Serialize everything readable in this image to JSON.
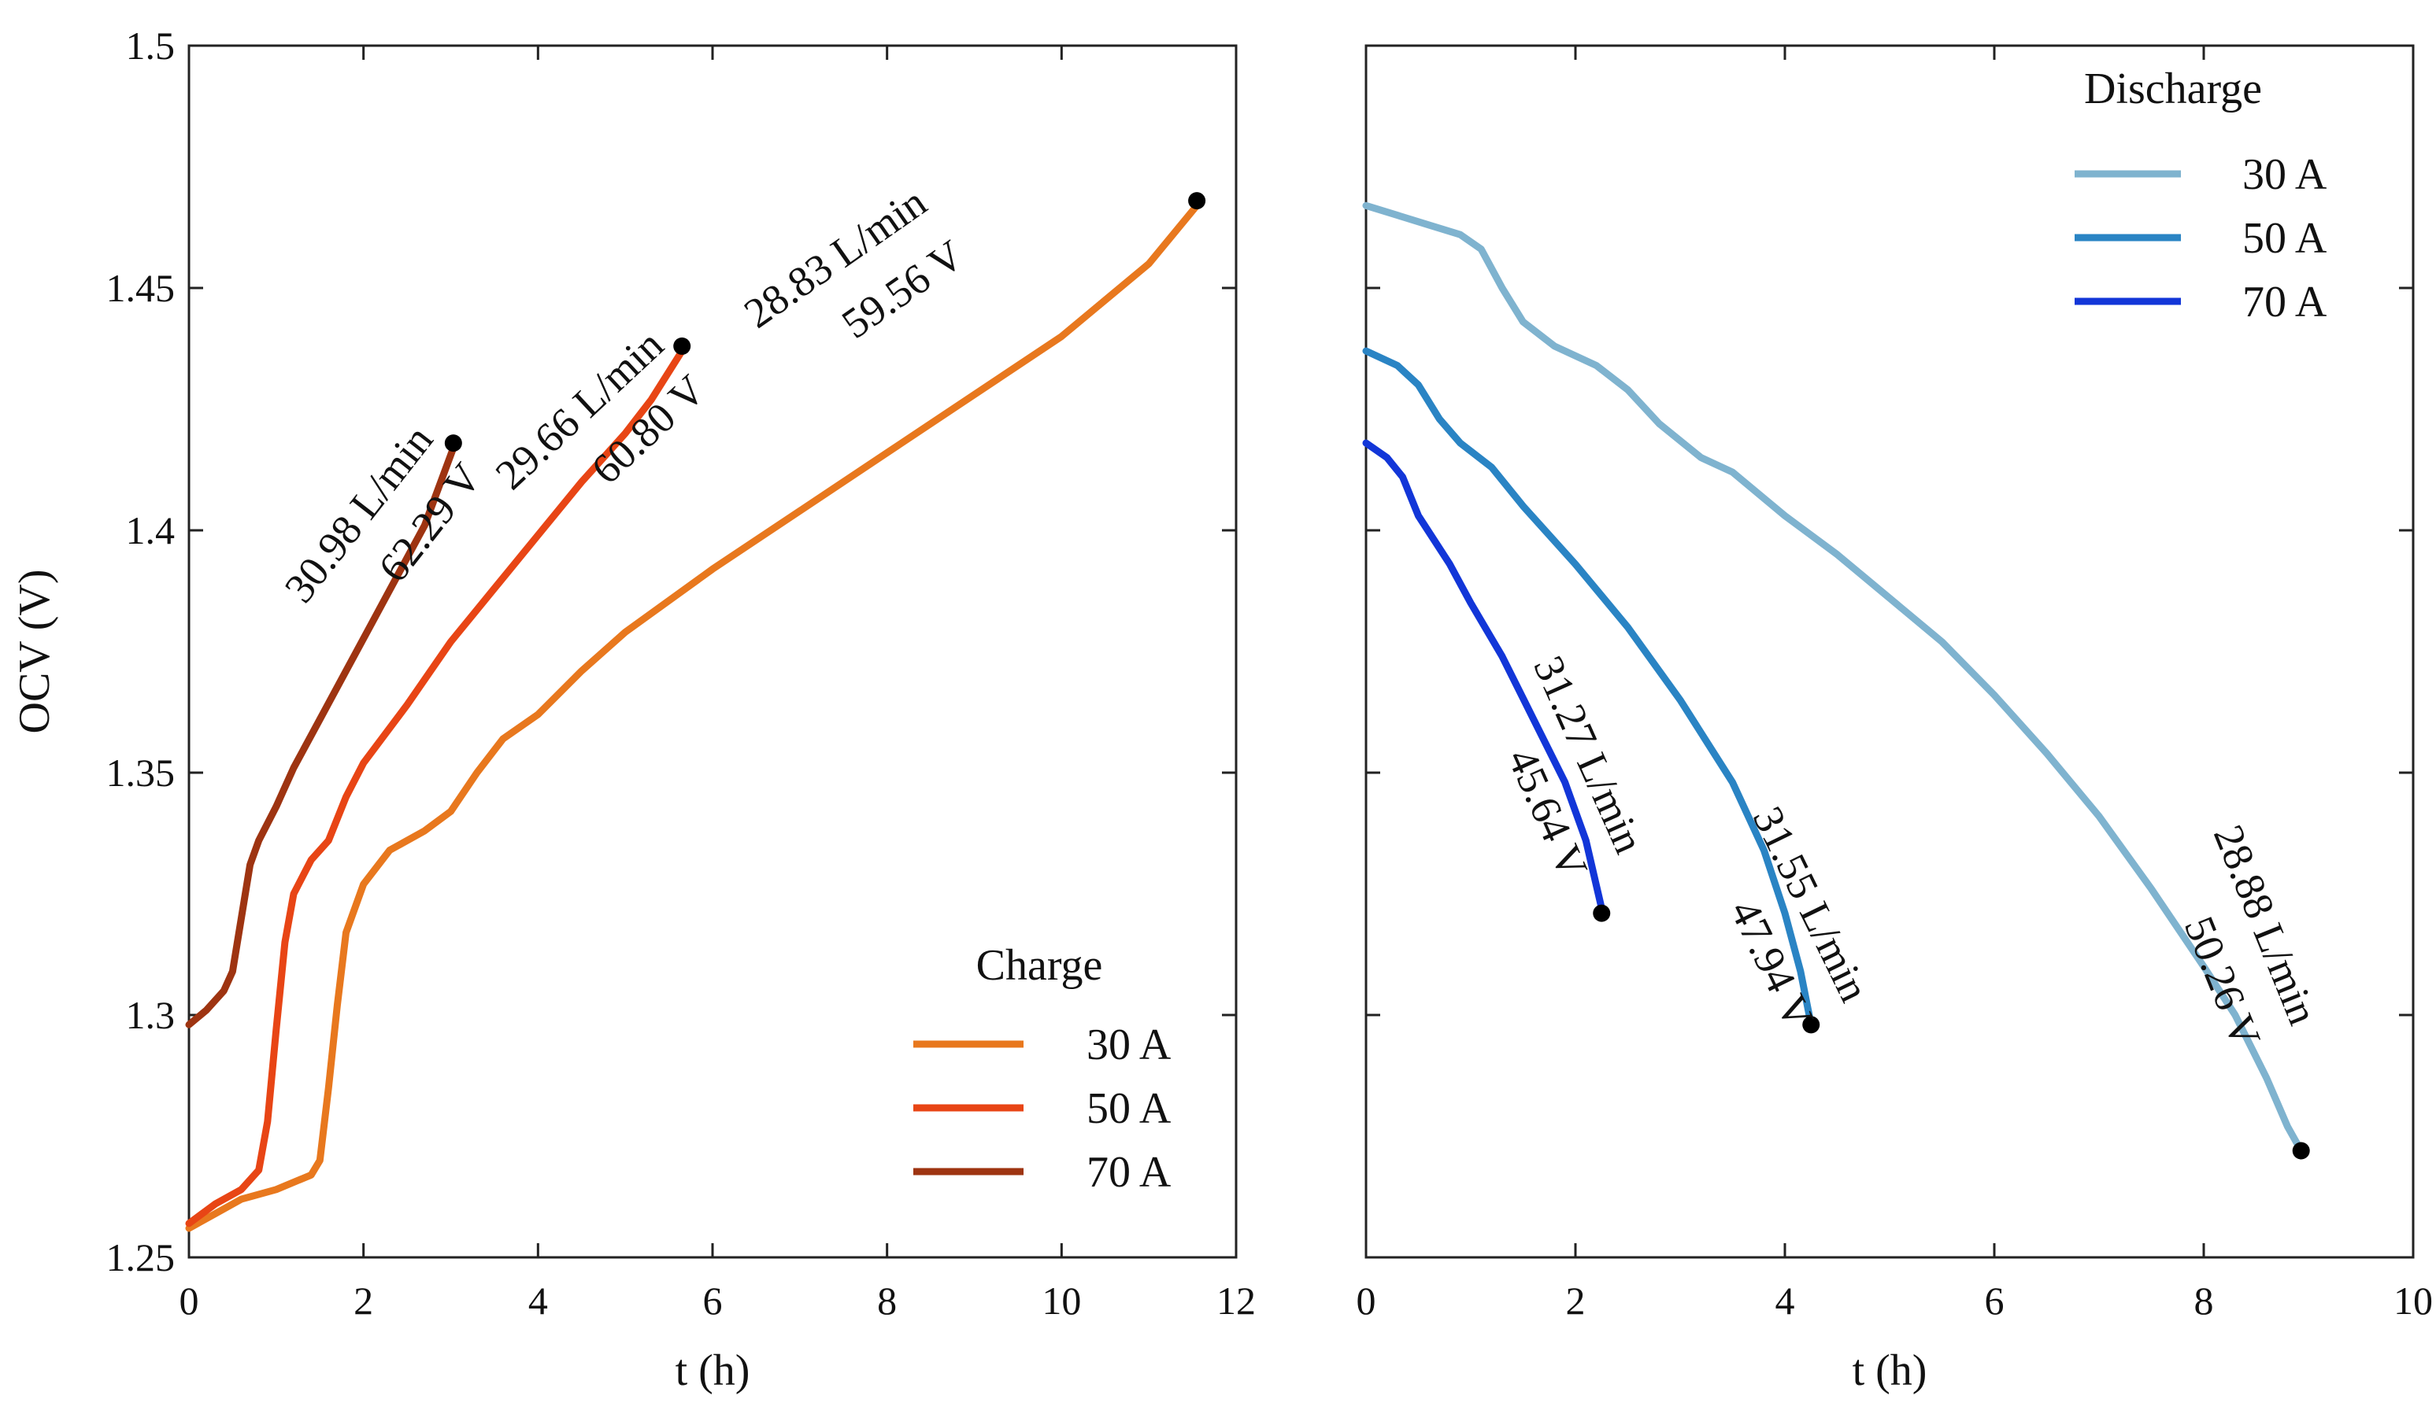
{
  "chart_data": [
    {
      "type": "line",
      "panel": "charge",
      "xlabel": "t (h)",
      "ylabel": "OCV (V)",
      "xlim": [
        0,
        12
      ],
      "ylim": [
        1.25,
        1.5
      ],
      "xticks": [
        "0",
        "2",
        "4",
        "6",
        "8",
        "10",
        "12"
      ],
      "yticks": [
        "1.25",
        "1.3",
        "1.35",
        "1.4",
        "1.45",
        "1.5"
      ],
      "legend": {
        "title": "Charge",
        "position": "bottom-right"
      },
      "series": [
        {
          "name": "30 A",
          "color": "#E8781E",
          "points": [
            [
              0,
              1.256
            ],
            [
              0.3,
              1.259
            ],
            [
              0.6,
              1.262
            ],
            [
              1.0,
              1.264
            ],
            [
              1.4,
              1.267
            ],
            [
              1.5,
              1.27
            ],
            [
              1.6,
              1.285
            ],
            [
              1.7,
              1.302
            ],
            [
              1.8,
              1.317
            ],
            [
              2.0,
              1.327
            ],
            [
              2.3,
              1.334
            ],
            [
              2.7,
              1.338
            ],
            [
              3.0,
              1.342
            ],
            [
              3.3,
              1.35
            ],
            [
              3.6,
              1.357
            ],
            [
              4.0,
              1.362
            ],
            [
              4.5,
              1.371
            ],
            [
              5.0,
              1.379
            ],
            [
              6.0,
              1.392
            ],
            [
              7.0,
              1.404
            ],
            [
              8.0,
              1.416
            ],
            [
              9.0,
              1.428
            ],
            [
              10.0,
              1.44
            ],
            [
              11.0,
              1.455
            ],
            [
              11.55,
              1.467
            ]
          ],
          "end_marker": [
            11.55,
            1.468
          ],
          "annotations": [
            "28.83 L/min",
            "59.56 V"
          ]
        },
        {
          "name": "50 A",
          "color": "#E84515",
          "points": [
            [
              0,
              1.257
            ],
            [
              0.3,
              1.261
            ],
            [
              0.6,
              1.264
            ],
            [
              0.8,
              1.268
            ],
            [
              0.9,
              1.278
            ],
            [
              1.0,
              1.297
            ],
            [
              1.1,
              1.315
            ],
            [
              1.2,
              1.325
            ],
            [
              1.4,
              1.332
            ],
            [
              1.6,
              1.336
            ],
            [
              1.8,
              1.345
            ],
            [
              2.0,
              1.352
            ],
            [
              2.5,
              1.364
            ],
            [
              3.0,
              1.377
            ],
            [
              3.5,
              1.388
            ],
            [
              4.0,
              1.399
            ],
            [
              4.5,
              1.41
            ],
            [
              5.0,
              1.42
            ],
            [
              5.3,
              1.427
            ],
            [
              5.65,
              1.437
            ]
          ],
          "end_marker": [
            5.65,
            1.438
          ],
          "annotations": [
            "29.66 L/min",
            "60.80 V"
          ]
        },
        {
          "name": "70 A",
          "color": "#9E3411",
          "points": [
            [
              0,
              1.298
            ],
            [
              0.2,
              1.301
            ],
            [
              0.4,
              1.305
            ],
            [
              0.5,
              1.309
            ],
            [
              0.6,
              1.32
            ],
            [
              0.7,
              1.331
            ],
            [
              0.8,
              1.336
            ],
            [
              1.0,
              1.343
            ],
            [
              1.2,
              1.351
            ],
            [
              1.5,
              1.361
            ],
            [
              1.8,
              1.371
            ],
            [
              2.1,
              1.381
            ],
            [
              2.4,
              1.391
            ],
            [
              2.7,
              1.401
            ],
            [
              3.03,
              1.417
            ]
          ],
          "end_marker": [
            3.03,
            1.418
          ],
          "annotations": [
            "30.98 L/min",
            "62.29 V"
          ]
        }
      ]
    },
    {
      "type": "line",
      "panel": "discharge",
      "xlabel": "t (h)",
      "ylabel": "",
      "xlim": [
        0,
        10
      ],
      "ylim": [
        1.25,
        1.5
      ],
      "xticks": [
        "0",
        "2",
        "4",
        "6",
        "8",
        "10"
      ],
      "yticks": [],
      "legend": {
        "title": "Discharge",
        "position": "top-right"
      },
      "series": [
        {
          "name": "30 A",
          "color": "#7FB3CF",
          "points": [
            [
              0,
              1.467
            ],
            [
              0.3,
              1.465
            ],
            [
              0.6,
              1.463
            ],
            [
              0.9,
              1.461
            ],
            [
              1.1,
              1.458
            ],
            [
              1.3,
              1.45
            ],
            [
              1.5,
              1.443
            ],
            [
              1.8,
              1.438
            ],
            [
              2.2,
              1.434
            ],
            [
              2.5,
              1.429
            ],
            [
              2.8,
              1.422
            ],
            [
              3.2,
              1.415
            ],
            [
              3.5,
              1.412
            ],
            [
              4.0,
              1.403
            ],
            [
              4.5,
              1.395
            ],
            [
              5.0,
              1.386
            ],
            [
              5.5,
              1.377
            ],
            [
              6.0,
              1.366
            ],
            [
              6.5,
              1.354
            ],
            [
              7.0,
              1.341
            ],
            [
              7.5,
              1.326
            ],
            [
              8.0,
              1.31
            ],
            [
              8.3,
              1.3
            ],
            [
              8.6,
              1.287
            ],
            [
              8.8,
              1.277
            ],
            [
              8.93,
              1.272
            ]
          ],
          "end_marker": [
            8.93,
            1.272
          ],
          "annotations": [
            "28.88 L/min",
            "50.26 V"
          ]
        },
        {
          "name": "50 A",
          "color": "#2A84C4",
          "points": [
            [
              0,
              1.437
            ],
            [
              0.3,
              1.434
            ],
            [
              0.5,
              1.43
            ],
            [
              0.7,
              1.423
            ],
            [
              0.9,
              1.418
            ],
            [
              1.2,
              1.413
            ],
            [
              1.5,
              1.405
            ],
            [
              2.0,
              1.393
            ],
            [
              2.5,
              1.38
            ],
            [
              3.0,
              1.365
            ],
            [
              3.5,
              1.348
            ],
            [
              3.8,
              1.334
            ],
            [
              4.0,
              1.321
            ],
            [
              4.15,
              1.309
            ],
            [
              4.25,
              1.298
            ]
          ],
          "end_marker": [
            4.25,
            1.298
          ],
          "annotations": [
            "31.55 L/min",
            "47.94 V"
          ]
        },
        {
          "name": "70 A",
          "color": "#1236D8",
          "points": [
            [
              0,
              1.418
            ],
            [
              0.2,
              1.415
            ],
            [
              0.35,
              1.411
            ],
            [
              0.5,
              1.403
            ],
            [
              0.8,
              1.393
            ],
            [
              1.0,
              1.385
            ],
            [
              1.3,
              1.374
            ],
            [
              1.6,
              1.361
            ],
            [
              1.9,
              1.348
            ],
            [
              2.1,
              1.336
            ],
            [
              2.25,
              1.322
            ]
          ],
          "end_marker": [
            2.25,
            1.321
          ],
          "annotations": [
            "31.27 L/min",
            "45.64 V"
          ]
        }
      ]
    }
  ]
}
